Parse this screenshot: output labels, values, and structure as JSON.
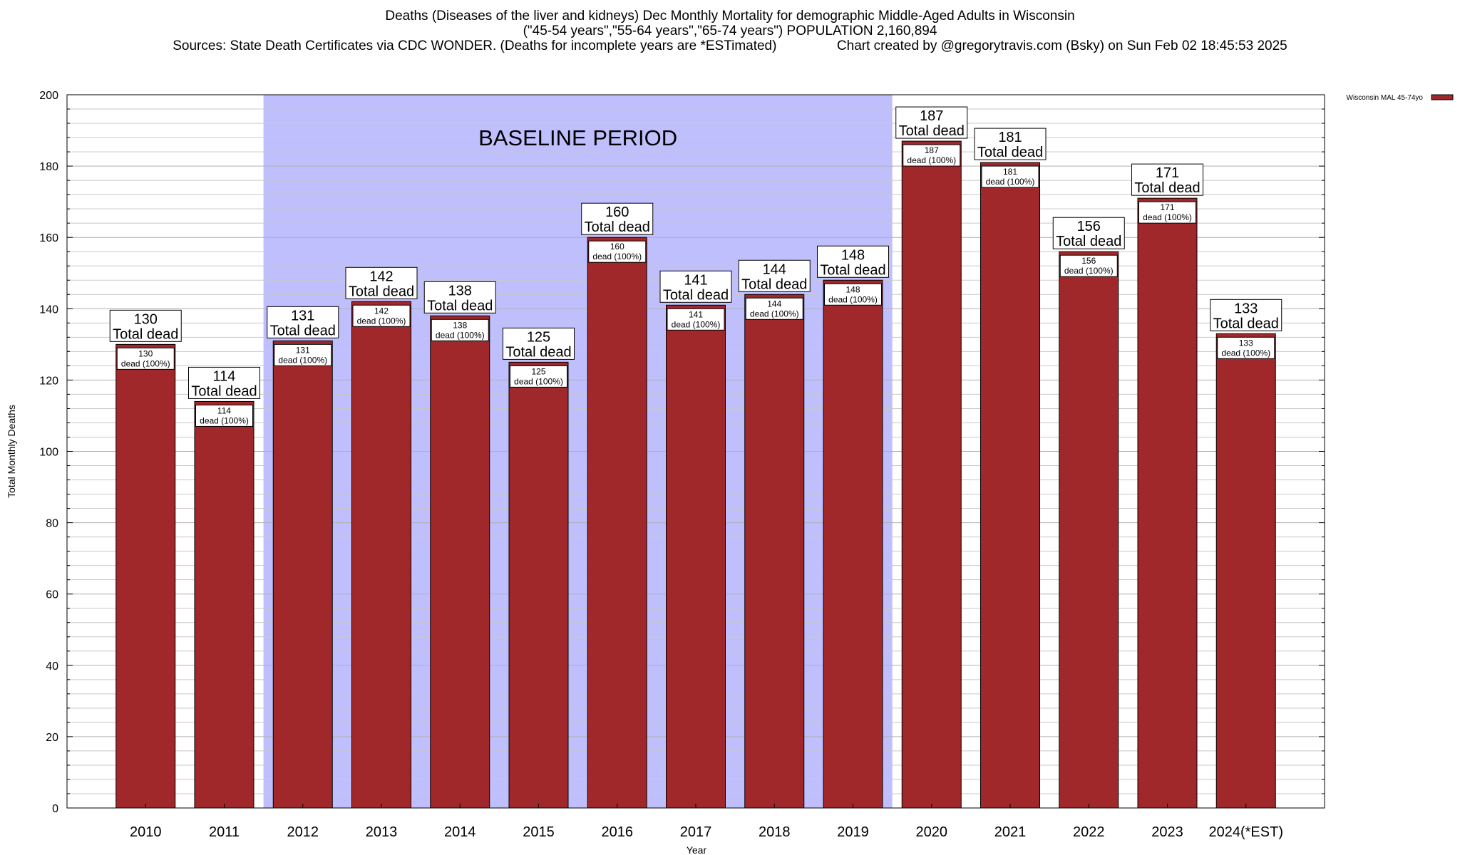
{
  "titles": {
    "line1": "Deaths (Diseases of the liver and kidneys) Dec Monthly Mortality for demographic Middle-Aged Adults in Wisconsin",
    "line2": "(\"45-54 years\",\"55-64 years\",\"65-74 years\") POPULATION 2,160,894",
    "line3": "Sources: State Death Certificates via CDC WONDER. (Deaths for incomplete years are *ESTimated)                Chart created by @gregorytravis.com (Bsky) on Sun Feb 02 18:45:53 2025"
  },
  "colors": {
    "bar": "#a0282a",
    "baseline_shade": "#bfbffe",
    "grid": "#c8c8c8"
  },
  "chart_data": {
    "type": "bar",
    "title": "Deaths (Diseases of the liver and kidneys) Dec Monthly Mortality for demographic Middle-Aged Adults in Wisconsin",
    "xlabel": "Year",
    "ylabel": "Total Monthly Deaths",
    "ylim": [
      0,
      200
    ],
    "yticks": [
      0,
      20,
      40,
      60,
      80,
      100,
      120,
      140,
      160,
      180,
      200
    ],
    "categories": [
      "2010",
      "2011",
      "2012",
      "2013",
      "2014",
      "2015",
      "2016",
      "2017",
      "2018",
      "2019",
      "2020",
      "2021",
      "2022",
      "2023",
      "2024(*EST)"
    ],
    "series": [
      {
        "name": "Wisconsin MAL 45-74yo",
        "values": [
          130,
          114,
          131,
          142,
          138,
          125,
          160,
          141,
          144,
          148,
          187,
          181,
          156,
          171,
          133
        ]
      }
    ],
    "total_label_suffix": "Total dead",
    "inner_label_suffix": "dead (100%)",
    "baseline_period": {
      "label": "BASELINE PERIOD",
      "from": "2012",
      "to": "2019"
    },
    "legend": {
      "position": "top-right",
      "entries": [
        "Wisconsin MAL 45-74yo"
      ]
    },
    "grid": true
  }
}
